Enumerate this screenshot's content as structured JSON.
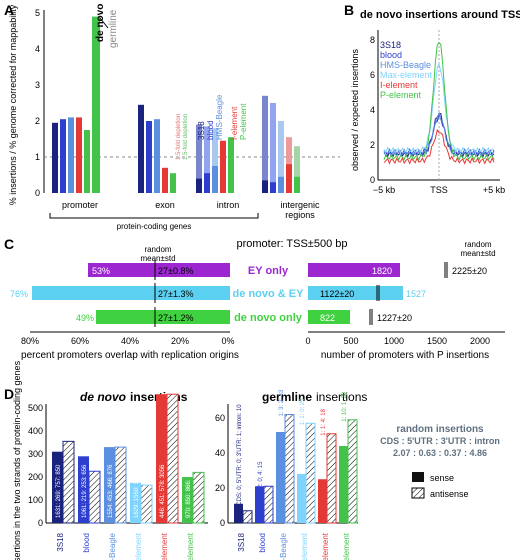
{
  "panels": {
    "A": "A",
    "B": "B",
    "C": "C",
    "D": "D"
  },
  "panelA": {
    "ylabel": "% insertions / % genome corrected for mappability",
    "yticks": [
      "0",
      "1",
      "2",
      "3",
      "4",
      "5"
    ],
    "groups": [
      "promoter",
      "exon",
      "intron",
      "intergenic regions"
    ],
    "bracket_label": "protein-coding genes",
    "de_novo": "de novo",
    "germline": "germline",
    "legend": [
      "3S18",
      "blood",
      "HMS-Beagle",
      "I-element",
      "P-element"
    ],
    "depletion_labels": [
      "1.5-fold depletion",
      "1.5-fold depletion"
    ],
    "colors": [
      "#1a237e",
      "#2e3fd0",
      "#5b8fe0",
      "#e53935",
      "#43c34a"
    ]
  },
  "panelB": {
    "title": "de novo insertions around TSS",
    "ylabel": "observed / expected insertions",
    "yticks": [
      "0",
      "2",
      "4",
      "6",
      "8"
    ],
    "xticks": [
      "−5 kb",
      "TSS",
      "+5 kb"
    ],
    "legend": [
      "3S18",
      "blood",
      "HMS-Beagle",
      "Max-element",
      "I-element",
      "P-element"
    ],
    "colors": [
      "#1a237e",
      "#2e3fd0",
      "#5b8fe0",
      "#7fd3ff",
      "#e53935",
      "#43c34a"
    ]
  },
  "panelC": {
    "title": "promoter: TSS±500 bp",
    "random_label": "random",
    "meanstd_label": "mean±std",
    "categories": [
      "EY only",
      "de novo & EY",
      "de novo only"
    ],
    "left_pct": [
      "53%",
      "76%",
      "49%"
    ],
    "left_random": [
      "27±0.8%",
      "27±1.3%",
      "27±1.2%"
    ],
    "right_vals": [
      "1820",
      "1122±20",
      "822"
    ],
    "right_extra": [
      "",
      "1527",
      ""
    ],
    "right_random": [
      "2225±20",
      "",
      "1227±20"
    ],
    "left_xticks": [
      "80%",
      "60%",
      "40%",
      "20%",
      "0%"
    ],
    "right_xticks": [
      "0",
      "500",
      "1000",
      "1500",
      "2000"
    ],
    "left_xlabel": "percent promoters overlap with replication origins",
    "right_xlabel": "number of promoters with P insertions",
    "colors": [
      "#9c27d0",
      "#5bd0f0",
      "#3fd13f"
    ]
  },
  "panelD": {
    "ylabel": "n. insertions in the two strands of protein-coding genes",
    "yticks": [
      "0",
      "100",
      "200",
      "300",
      "400",
      "500"
    ],
    "denovo_title_em": "de novo",
    "germline_title_em": "germline",
    "title_suffix": "insertions",
    "denovo_labels": [
      "3S18",
      "blood",
      "HMS-Beagle",
      "Max-element",
      "I-element",
      "P-element"
    ],
    "denovo_bar_text": [
      "1631: 269: 757: 850",
      "1061: 219: 253: 656",
      "1554: 453: 466: 876",
      "1629: 1550: 193: 343",
      "446: 451: 578: 3056",
      "970: 850: 866: 1504"
    ],
    "germline_yticks": [
      "0",
      "20",
      "40",
      "60"
    ],
    "germline_labels": [
      "3S18",
      "blood",
      "HMS-Beagle",
      "Max-element",
      "I-element",
      "P-element"
    ],
    "germline_bar_text": [
      "CDS: 0; 5'UTR: 0; 3'UTR: 1; intron: 10",
      "2: 0; 4: 15",
      "1: 3: 2: 43",
      "1: 1: 0: 25",
      "1: 1: 4: 18",
      "1: 10: 1: 29"
    ],
    "random_title": "random insertions",
    "random_line1": "CDS : 5'UTR : 3'UTR : intron",
    "random_line2": "2.07 :  0.63 :  0.37 : 4.86",
    "sense": "sense",
    "antisense": "antisense",
    "colors": [
      "#1a237e",
      "#2e3fd0",
      "#5b8fe0",
      "#7fd3ff",
      "#e53935",
      "#43c34a"
    ]
  }
}
